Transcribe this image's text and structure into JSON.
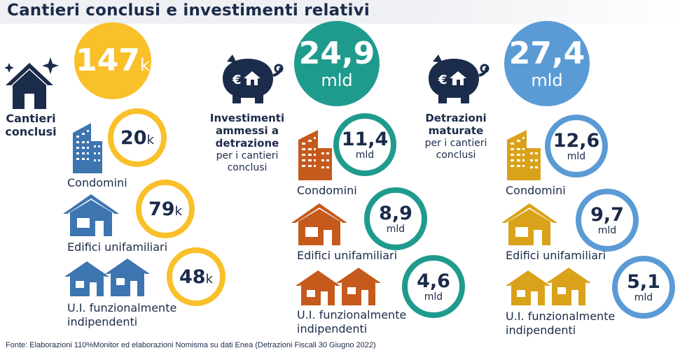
{
  "title": "Cantieri conclusi e investimenti relativi",
  "source": "Fonte: Elaborazioni 110%Monitor ed elaborazioni Nomisma su dati Enea (Detrazioni Fiscali 30 Giugno 2022)",
  "colors": {
    "yellow": "#f9c02a",
    "teal": "#1f9b8e",
    "blue": "#5b9bd5",
    "navy": "#1b2b4a",
    "orange": "#c55a1c",
    "gold": "#d9a21a",
    "steel": "#3d75b0"
  },
  "col1": {
    "heading_line1": "Cantieri",
    "heading_line2": "conclusi",
    "total": {
      "value": "147",
      "unit": "k"
    },
    "items": [
      {
        "value": "20",
        "unit": "k",
        "label": "Condomini"
      },
      {
        "value": "79",
        "unit": "k",
        "label": "Edifici unifamiliari"
      },
      {
        "value": "48",
        "unit": "k",
        "label_line1": "U.I. funzionalmente",
        "label_line2": "indipendenti"
      }
    ]
  },
  "col2": {
    "heading_line1": "Investimenti",
    "heading_line2": "ammessi a",
    "heading_line3": "detrazione",
    "sub_line1": "per i cantieri",
    "sub_line2": "conclusi",
    "total": {
      "value": "24,9",
      "unit": "mld"
    },
    "items": [
      {
        "value": "11,4",
        "unit": "mld",
        "label": "Condomini"
      },
      {
        "value": "8,9",
        "unit": "mld",
        "label": "Edifici unifamiliari"
      },
      {
        "value": "4,6",
        "unit": "mld",
        "label_line1": "U.I. funzionalmente",
        "label_line2": "indipendenti"
      }
    ]
  },
  "col3": {
    "heading_line1": "Detrazioni",
    "heading_line2": "maturate",
    "sub_line1": "per i cantieri",
    "sub_line2": "conclusi",
    "total": {
      "value": "27,4",
      "unit": "mld"
    },
    "items": [
      {
        "value": "12,6",
        "unit": "mld",
        "label": "Condomini"
      },
      {
        "value": "9,7",
        "unit": "mld",
        "label": "Edifici unifamiliari"
      },
      {
        "value": "5,1",
        "unit": "mld",
        "label_line1": "U.I. funzionalmente",
        "label_line2": "indipendenti"
      }
    ]
  }
}
